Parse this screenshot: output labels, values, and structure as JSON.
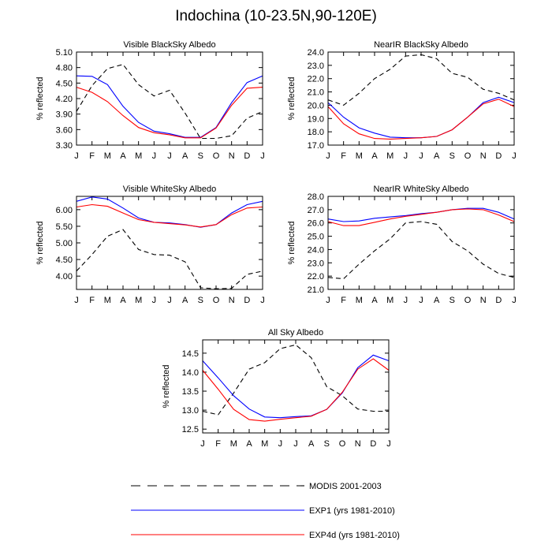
{
  "title": "Indochina (10-23.5N,90-120E)",
  "ylabel": "% reflected",
  "months": [
    "J",
    "F",
    "M",
    "A",
    "M",
    "J",
    "J",
    "A",
    "S",
    "O",
    "N",
    "D",
    "J"
  ],
  "colors": {
    "modis": "#000000",
    "exp1": "#0000ff",
    "exp4d": "#ff0000"
  },
  "legend": [
    {
      "key": "modis",
      "label": "MODIS 2001-2003",
      "dashed": true
    },
    {
      "key": "exp1",
      "label": "EXP1 (yrs 1981-2010)",
      "dashed": false
    },
    {
      "key": "exp4d",
      "label": "EXP4d (yrs 1981-2010)",
      "dashed": false
    }
  ],
  "chart_data": [
    {
      "type": "line",
      "title": "Visible BlackSky Albedo",
      "ylabel": "% reflected",
      "ylim": [
        3.3,
        5.1
      ],
      "yticks": [
        "3.30",
        "3.60",
        "3.90",
        "4.20",
        "4.50",
        "4.80",
        "5.10"
      ],
      "series": [
        {
          "key": "modis",
          "name": "MODIS 2001-2003",
          "values": [
            3.95,
            4.45,
            4.78,
            4.86,
            4.47,
            4.25,
            4.36,
            3.92,
            3.43,
            3.43,
            3.48,
            3.82,
            3.95
          ]
        },
        {
          "key": "exp1",
          "name": "EXP1 (yrs 1981-2010)",
          "values": [
            4.64,
            4.63,
            4.47,
            4.05,
            3.74,
            3.57,
            3.52,
            3.45,
            3.45,
            3.64,
            4.12,
            4.51,
            4.64
          ]
        },
        {
          "key": "exp4d",
          "name": "EXP4d (yrs 1981-2010)",
          "values": [
            4.42,
            4.32,
            4.14,
            3.87,
            3.64,
            3.54,
            3.5,
            3.44,
            3.44,
            3.63,
            4.07,
            4.4,
            4.42
          ]
        }
      ]
    },
    {
      "type": "line",
      "title": "NearIR BlackSky Albedo",
      "ylabel": "% reflected",
      "ylim": [
        17.0,
        24.0
      ],
      "yticks": [
        "17.0",
        "18.0",
        "19.0",
        "20.0",
        "21.0",
        "22.0",
        "23.0",
        "24.0"
      ],
      "series": [
        {
          "key": "modis",
          "name": "MODIS 2001-2003",
          "values": [
            20.4,
            20.0,
            20.9,
            22.0,
            22.7,
            23.7,
            23.8,
            23.5,
            22.4,
            22.1,
            21.2,
            20.9,
            20.4
          ]
        },
        {
          "key": "exp1",
          "name": "EXP1 (yrs 1981-2010)",
          "values": [
            20.2,
            19.1,
            18.3,
            17.9,
            17.6,
            17.55,
            17.55,
            17.65,
            18.15,
            19.1,
            20.2,
            20.6,
            20.2
          ]
        },
        {
          "key": "exp4d",
          "name": "EXP4d (yrs 1981-2010)",
          "values": [
            19.9,
            18.6,
            17.85,
            17.5,
            17.45,
            17.5,
            17.55,
            17.65,
            18.15,
            19.1,
            20.1,
            20.45,
            19.9
          ]
        }
      ]
    },
    {
      "type": "line",
      "title": "Visible WhiteSky Albedo",
      "ylabel": "% reflected",
      "ylim": [
        3.6,
        6.4
      ],
      "yticks": [
        "4.00",
        "4.50",
        "5.00",
        "5.50",
        "6.00"
      ],
      "series": [
        {
          "key": "modis",
          "name": "MODIS 2001-2003",
          "values": [
            4.15,
            4.65,
            5.2,
            5.4,
            4.8,
            4.65,
            4.63,
            4.43,
            3.65,
            3.62,
            3.63,
            4.05,
            4.15
          ]
        },
        {
          "key": "exp1",
          "name": "EXP1 (yrs 1981-2010)",
          "values": [
            6.25,
            6.38,
            6.32,
            6.05,
            5.75,
            5.62,
            5.6,
            5.55,
            5.47,
            5.55,
            5.9,
            6.15,
            6.25
          ]
        },
        {
          "key": "exp4d",
          "name": "EXP4d (yrs 1981-2010)",
          "values": [
            6.08,
            6.15,
            6.1,
            5.9,
            5.7,
            5.62,
            5.58,
            5.54,
            5.48,
            5.55,
            5.85,
            6.05,
            6.08
          ]
        }
      ]
    },
    {
      "type": "line",
      "title": "NearIR WhiteSky Albedo",
      "ylabel": "% reflected",
      "ylim": [
        21.0,
        28.0
      ],
      "yticks": [
        "21.0",
        "22.0",
        "23.0",
        "24.0",
        "25.0",
        "26.0",
        "27.0",
        "28.0"
      ],
      "series": [
        {
          "key": "modis",
          "name": "MODIS 2001-2003",
          "values": [
            21.9,
            21.8,
            22.9,
            23.9,
            24.8,
            26.0,
            26.1,
            25.9,
            24.6,
            23.9,
            22.9,
            22.2,
            21.9
          ]
        },
        {
          "key": "exp1",
          "name": "EXP1 (yrs 1981-2010)",
          "values": [
            26.3,
            26.1,
            26.15,
            26.35,
            26.45,
            26.55,
            26.7,
            26.8,
            27.0,
            27.1,
            27.1,
            26.8,
            26.3
          ]
        },
        {
          "key": "exp4d",
          "name": "EXP4d (yrs 1981-2010)",
          "values": [
            26.1,
            25.8,
            25.8,
            26.05,
            26.3,
            26.5,
            26.65,
            26.8,
            27.0,
            27.05,
            27.0,
            26.6,
            26.1
          ]
        }
      ]
    },
    {
      "type": "line",
      "title": "All Sky Albedo",
      "ylabel": "% reflected",
      "ylim": [
        12.4,
        14.85
      ],
      "yticks": [
        "12.5",
        "13.0",
        "13.5",
        "14.0",
        "14.5"
      ],
      "series": [
        {
          "key": "modis",
          "name": "MODIS 2001-2003",
          "values": [
            12.97,
            12.88,
            13.45,
            14.08,
            14.25,
            14.62,
            14.72,
            14.38,
            13.62,
            13.38,
            13.03,
            12.97,
            12.97
          ]
        },
        {
          "key": "exp1",
          "name": "EXP1 (yrs 1981-2010)",
          "values": [
            14.3,
            13.85,
            13.38,
            13.03,
            12.82,
            12.8,
            12.83,
            12.85,
            13.02,
            13.45,
            14.12,
            14.45,
            14.3
          ]
        },
        {
          "key": "exp4d",
          "name": "EXP4d (yrs 1981-2010)",
          "values": [
            14.05,
            13.55,
            13.02,
            12.75,
            12.71,
            12.76,
            12.8,
            12.84,
            13.02,
            13.47,
            14.08,
            14.35,
            14.05
          ]
        }
      ]
    }
  ]
}
